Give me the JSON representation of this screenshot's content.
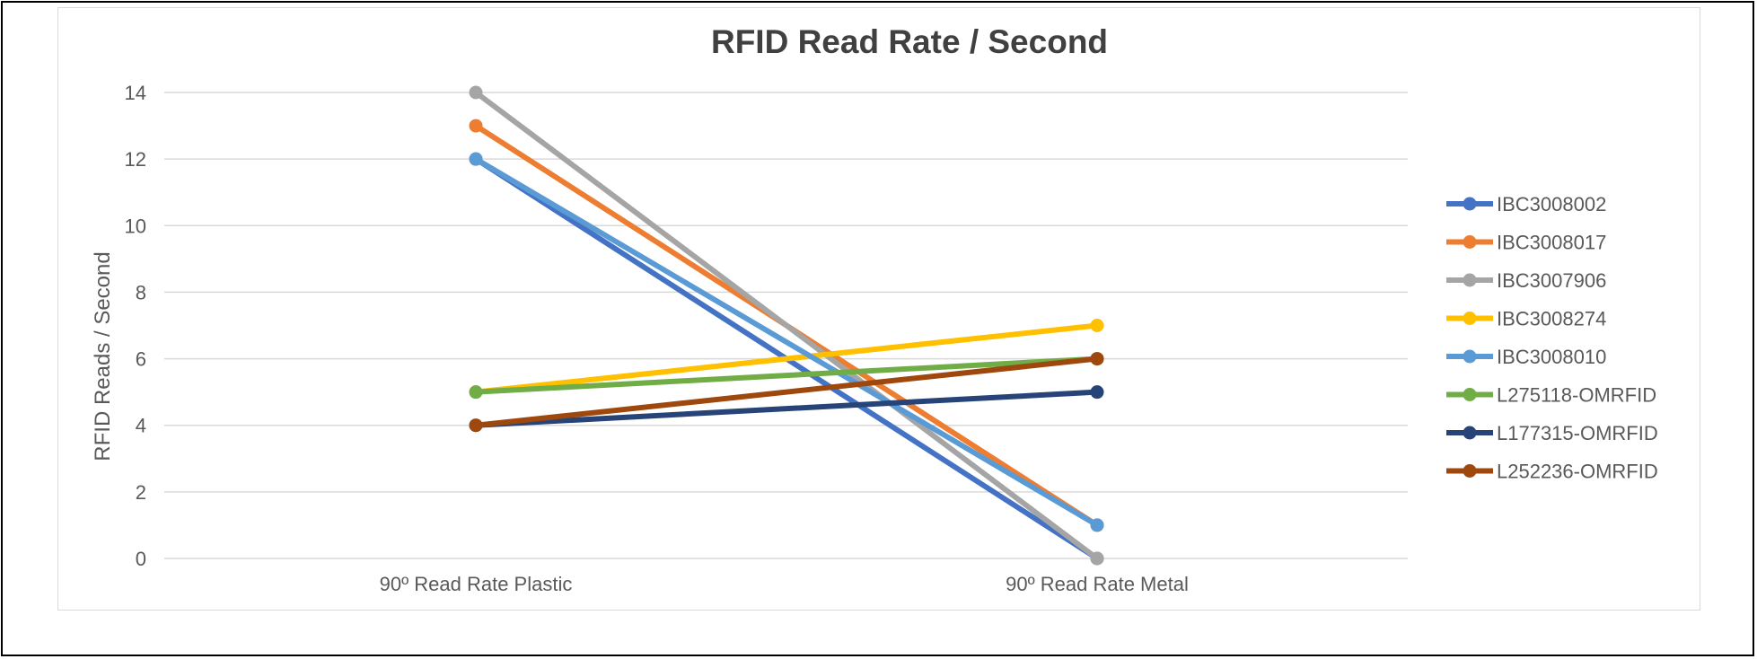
{
  "chart_data": {
    "type": "line",
    "title": "RFID Read Rate / Second",
    "xlabel": "",
    "ylabel": "RFID Reads / Second",
    "categories": [
      "90º Read Rate Plastic",
      "90º Read Rate Metal"
    ],
    "ylim": [
      0,
      14
    ],
    "yticks": [
      0,
      2,
      4,
      6,
      8,
      10,
      12,
      14
    ],
    "grid": "horizontal",
    "legend_position": "right",
    "series": [
      {
        "name": "IBC3008002",
        "color": "#4472C4",
        "values": [
          12,
          0
        ]
      },
      {
        "name": "IBC3008017",
        "color": "#ED7D31",
        "values": [
          13,
          1
        ]
      },
      {
        "name": "IBC3007906",
        "color": "#A5A5A5",
        "values": [
          14,
          0
        ]
      },
      {
        "name": "IBC3008274",
        "color": "#FFC000",
        "values": [
          5,
          7
        ]
      },
      {
        "name": "IBC3008010",
        "color": "#5B9BD5",
        "values": [
          12,
          1
        ]
      },
      {
        "name": "L275118-OMRFID",
        "color": "#70AD47",
        "values": [
          5,
          6
        ]
      },
      {
        "name": "L177315-OMRFID",
        "color": "#264478",
        "values": [
          4,
          5
        ]
      },
      {
        "name": "L252236-OMRFID",
        "color": "#9E480E",
        "values": [
          4,
          6
        ]
      }
    ]
  }
}
